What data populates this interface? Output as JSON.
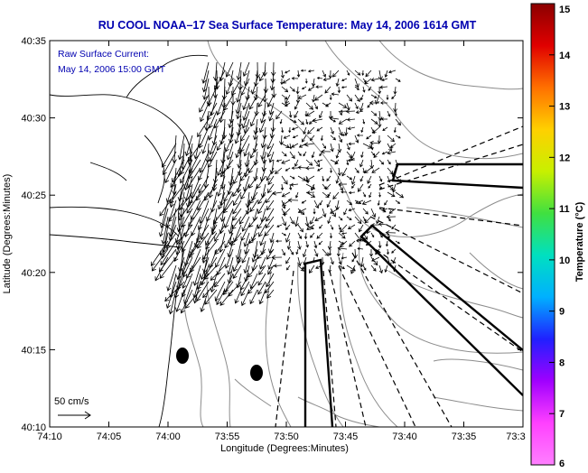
{
  "title": "RU COOL  NOAA–17  Sea Surface Temperature:  May 14, 2006 1614 GMT",
  "annotation": {
    "line1": "Raw Surface Current:",
    "line2": "May 14, 2006 15:00 GMT"
  },
  "scale_label": "50 cm/s",
  "chart_data": {
    "type": "map",
    "xlabel": "Longitude (Degrees:Minutes)",
    "ylabel": "Latitude (Degrees:Minutes)",
    "x_ticks": [
      "74:10",
      "74:05",
      "74:00",
      "73:55",
      "73:50",
      "73:45",
      "73:40",
      "73:35",
      "73:3"
    ],
    "y_ticks": [
      "40:35",
      "40:30",
      "40:25",
      "40:20",
      "40:15",
      "40:10"
    ],
    "colorbar": {
      "label": "Temperature (°C)",
      "min": 6,
      "max": 15,
      "ticks": [
        "15",
        "14",
        "13",
        "12",
        "11",
        "10",
        "9",
        "8",
        "7",
        "6"
      ],
      "colors": [
        "#8b0000",
        "#e00000",
        "#ff7000",
        "#ffd000",
        "#c8f000",
        "#40e040",
        "#00e0c0",
        "#00b0ff",
        "#2020ff",
        "#a000ff",
        "#ff40ff",
        "#ff80ff"
      ]
    },
    "current_field": "raw surface current vectors, strongest (~50 cm/s) near 40:20–40:32 N, 73:57–74:03 W, directed toward the southwest"
  }
}
